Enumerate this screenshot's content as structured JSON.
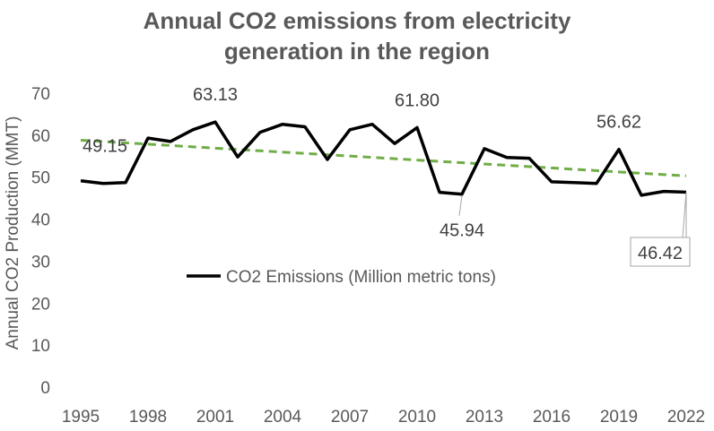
{
  "chart_data": {
    "type": "line",
    "title_line1": "Annual CO2 emissions from electricity",
    "title_line2": "generation in the region",
    "ylabel": "Annual CO2 Production (MMT)",
    "xlabel": "",
    "ylim": [
      0,
      70
    ],
    "yticks": [
      0,
      10,
      20,
      30,
      40,
      50,
      60,
      70
    ],
    "xticks": [
      1995,
      1998,
      2001,
      2004,
      2007,
      2010,
      2013,
      2016,
      2019,
      2022
    ],
    "grid": false,
    "legend_placement": "center-left",
    "series": [
      {
        "name": "CO2 Emissions (Million metric tons)",
        "color": "#000000",
        "x": [
          1995,
          1996,
          1997,
          1998,
          1999,
          2000,
          2001,
          2002,
          2003,
          2004,
          2005,
          2006,
          2007,
          2008,
          2009,
          2010,
          2011,
          2012,
          2013,
          2014,
          2015,
          2016,
          2017,
          2018,
          2019,
          2020,
          2021,
          2022
        ],
        "y": [
          49.15,
          48.5,
          48.7,
          59.3,
          58.5,
          61.3,
          63.13,
          54.8,
          60.7,
          62.6,
          62.0,
          54.2,
          61.3,
          62.6,
          58.0,
          61.8,
          46.4,
          45.94,
          56.8,
          54.7,
          54.5,
          48.9,
          48.7,
          48.5,
          56.62,
          45.7,
          46.6,
          46.42
        ]
      }
    ],
    "trendline": {
      "style": "linear",
      "color": "#70AD47",
      "start": [
        1995,
        58.8
      ],
      "end": [
        2022,
        50.3
      ]
    },
    "annotations": [
      {
        "x": 1995,
        "y": 49.15,
        "text": "49.15"
      },
      {
        "x": 2001,
        "y": 63.13,
        "text": "63.13"
      },
      {
        "x": 2010,
        "y": 61.8,
        "text": "61.80"
      },
      {
        "x": 2012,
        "y": 45.94,
        "text": "45.94"
      },
      {
        "x": 2019,
        "y": 56.62,
        "text": "56.62"
      },
      {
        "x": 2022,
        "y": 46.42,
        "text": "46.42",
        "boxed": true
      }
    ]
  }
}
